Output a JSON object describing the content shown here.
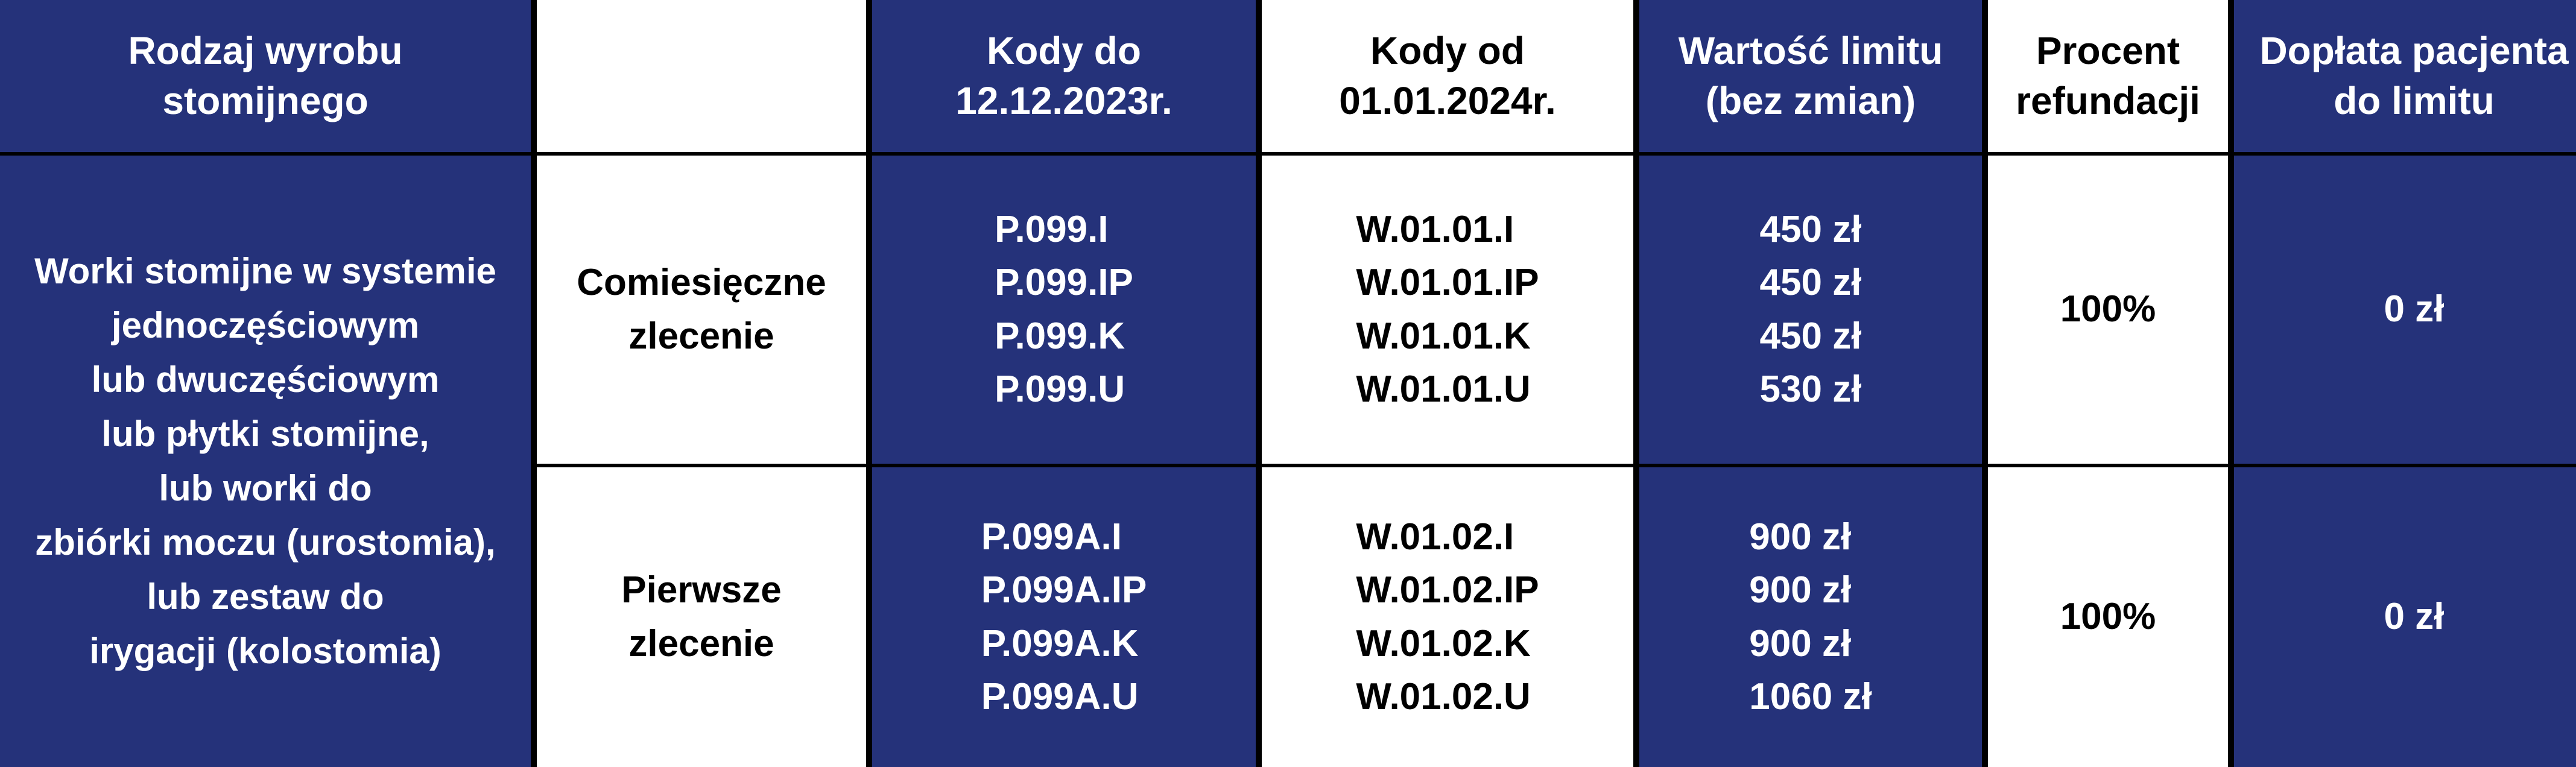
{
  "header": [
    "Rodzaj wyrobu stomijnego",
    "",
    "Kody do 12.12.2023r.",
    "Kody od 01.01.2024r.",
    "Wartość limitu (bez zmian)",
    "Procent refundacji",
    "Dopłata pacjenta do limitu"
  ],
  "header_lines": [
    [
      "Rodzaj wyrobu",
      "stomijnego"
    ],
    [],
    [
      "Kody do",
      "12.12.2023r."
    ],
    [
      "Kody od",
      "01.01.2024r."
    ],
    [
      "Wartość limitu",
      "(bez zmian)"
    ],
    [
      "Procent",
      "refundacji"
    ],
    [
      "Dopłata pacjenta",
      "do limitu"
    ]
  ],
  "product_type_lines": [
    "Worki stomijne w systemie",
    "jednoczęściowym",
    "lub dwuczęściowym",
    "lub płytki stomijne,",
    "lub worki do",
    "zbiórki moczu (urostomia),",
    "lub zestaw do",
    "irygacji (kolostomia)"
  ],
  "rows": [
    {
      "order_lines": [
        "Comiesięczne",
        "zlecenie"
      ],
      "old_codes": [
        "P.099.I",
        "P.099.IP",
        "P.099.K",
        "P.099.U"
      ],
      "new_codes": [
        "W.01.01.I",
        "W.01.01.IP",
        "W.01.01.K",
        "W.01.01.U"
      ],
      "limits": [
        "450 zł",
        "450 zł",
        "450 zł",
        "530 zł"
      ],
      "refund": "100%",
      "copay": "0 zł"
    },
    {
      "order_lines": [
        "Pierwsze",
        "zlecenie"
      ],
      "old_codes": [
        "P.099A.I",
        "P.099A.IP",
        "P.099A.K",
        "P.099A.U"
      ],
      "new_codes": [
        "W.01.02.I",
        "W.01.02.IP",
        "W.01.02.K",
        "W.01.02.U"
      ],
      "limits": [
        "900 zł",
        "900 zł",
        "900 zł",
        "1060 zł"
      ],
      "refund": "100%",
      "copay": "0 zł"
    }
  ],
  "colors": {
    "navy": "#25327a",
    "white": "#ffffff",
    "grid": "#000000"
  }
}
